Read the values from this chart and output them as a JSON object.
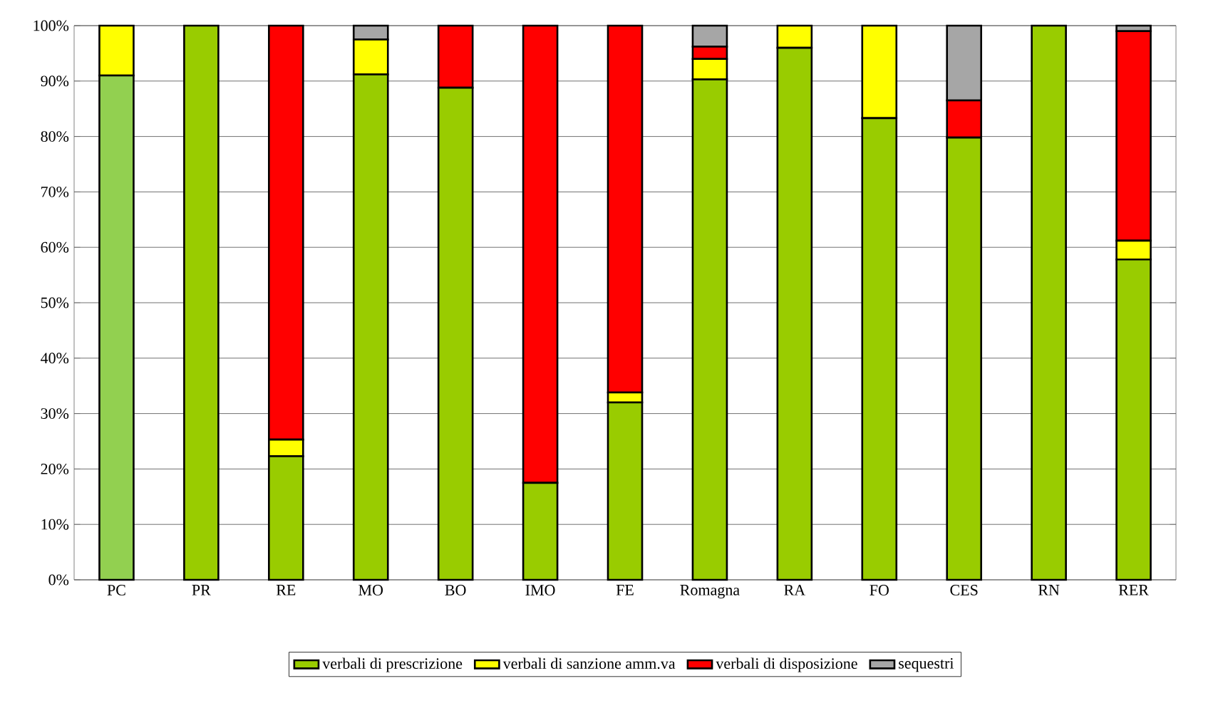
{
  "chart_data": {
    "type": "bar",
    "stacked": true,
    "categories": [
      "PC",
      "PR",
      "RE",
      "MO",
      "BO",
      "IMO",
      "FE",
      "Romagna",
      "RA",
      "FO",
      "CES",
      "RN",
      "RER"
    ],
    "series": [
      {
        "name": "verbali di prescrizione",
        "color": "#99cc00",
        "colors": [
          "#92d050",
          "#99cc00",
          "#99cc00",
          "#99cc00",
          "#99cc00",
          "#99cc00",
          "#99cc00",
          "#99cc00",
          "#99cc00",
          "#99cc00",
          "#99cc00",
          "#99cc00",
          "#99cc00"
        ],
        "values": [
          91,
          100,
          22.3,
          91.2,
          88.8,
          17.5,
          32,
          90.3,
          96,
          83.3,
          79.8,
          100,
          57.8
        ]
      },
      {
        "name": "verbali di sanzione amm.va",
        "color": "#ffff00",
        "values": [
          9,
          0,
          3,
          6.3,
          0,
          0,
          1.8,
          3.7,
          4,
          16.7,
          0,
          0,
          3.4
        ]
      },
      {
        "name": "verbali di disposizione",
        "color": "#ff0000",
        "values": [
          0,
          0,
          74.7,
          0,
          11.2,
          82.5,
          66.2,
          2.2,
          0,
          0,
          6.7,
          0,
          37.8
        ]
      },
      {
        "name": "sequestri",
        "color": "#a6a6a6",
        "values": [
          0,
          0,
          0,
          2.5,
          0,
          0,
          0,
          3.8,
          0,
          0,
          13.5,
          0,
          1.0
        ]
      }
    ],
    "ylim": [
      0,
      100
    ],
    "yticks": [
      {
        "value": 0,
        "label": "0%"
      },
      {
        "value": 10,
        "label": "10%"
      },
      {
        "value": 20,
        "label": "20%"
      },
      {
        "value": 30,
        "label": "30%"
      },
      {
        "value": 40,
        "label": "40%"
      },
      {
        "value": 50,
        "label": "50%"
      },
      {
        "value": 60,
        "label": "60%"
      },
      {
        "value": 70,
        "label": "70%"
      },
      {
        "value": 80,
        "label": "80%"
      },
      {
        "value": 90,
        "label": "90%"
      },
      {
        "value": 100,
        "label": "100%"
      }
    ],
    "grid": "y",
    "legend": "bottom"
  }
}
